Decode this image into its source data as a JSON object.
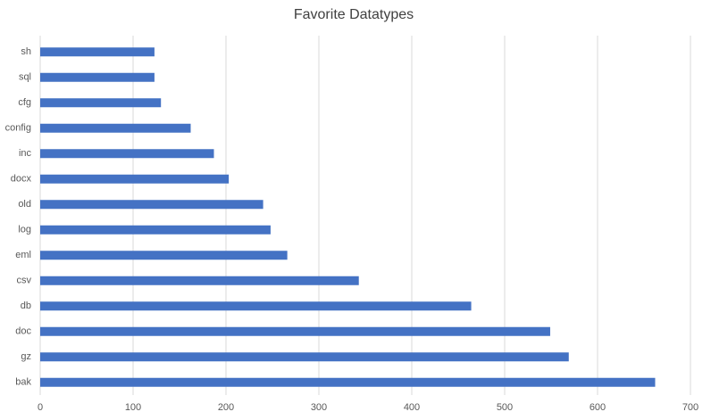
{
  "chart_data": {
    "type": "bar",
    "orientation": "horizontal",
    "title": "Favorite Datatypes",
    "categories": [
      "sh",
      "sql",
      "cfg",
      "config",
      "inc",
      "docx",
      "old",
      "log",
      "eml",
      "csv",
      "db",
      "doc",
      "gz",
      "bak"
    ],
    "values": [
      123,
      123,
      130,
      162,
      187,
      203,
      240,
      248,
      266,
      343,
      464,
      549,
      569,
      662
    ],
    "color": "#4472c4",
    "xlim": [
      0,
      700
    ],
    "xticks": [
      0,
      100,
      200,
      300,
      400,
      500,
      600,
      700
    ],
    "grid": true
  }
}
